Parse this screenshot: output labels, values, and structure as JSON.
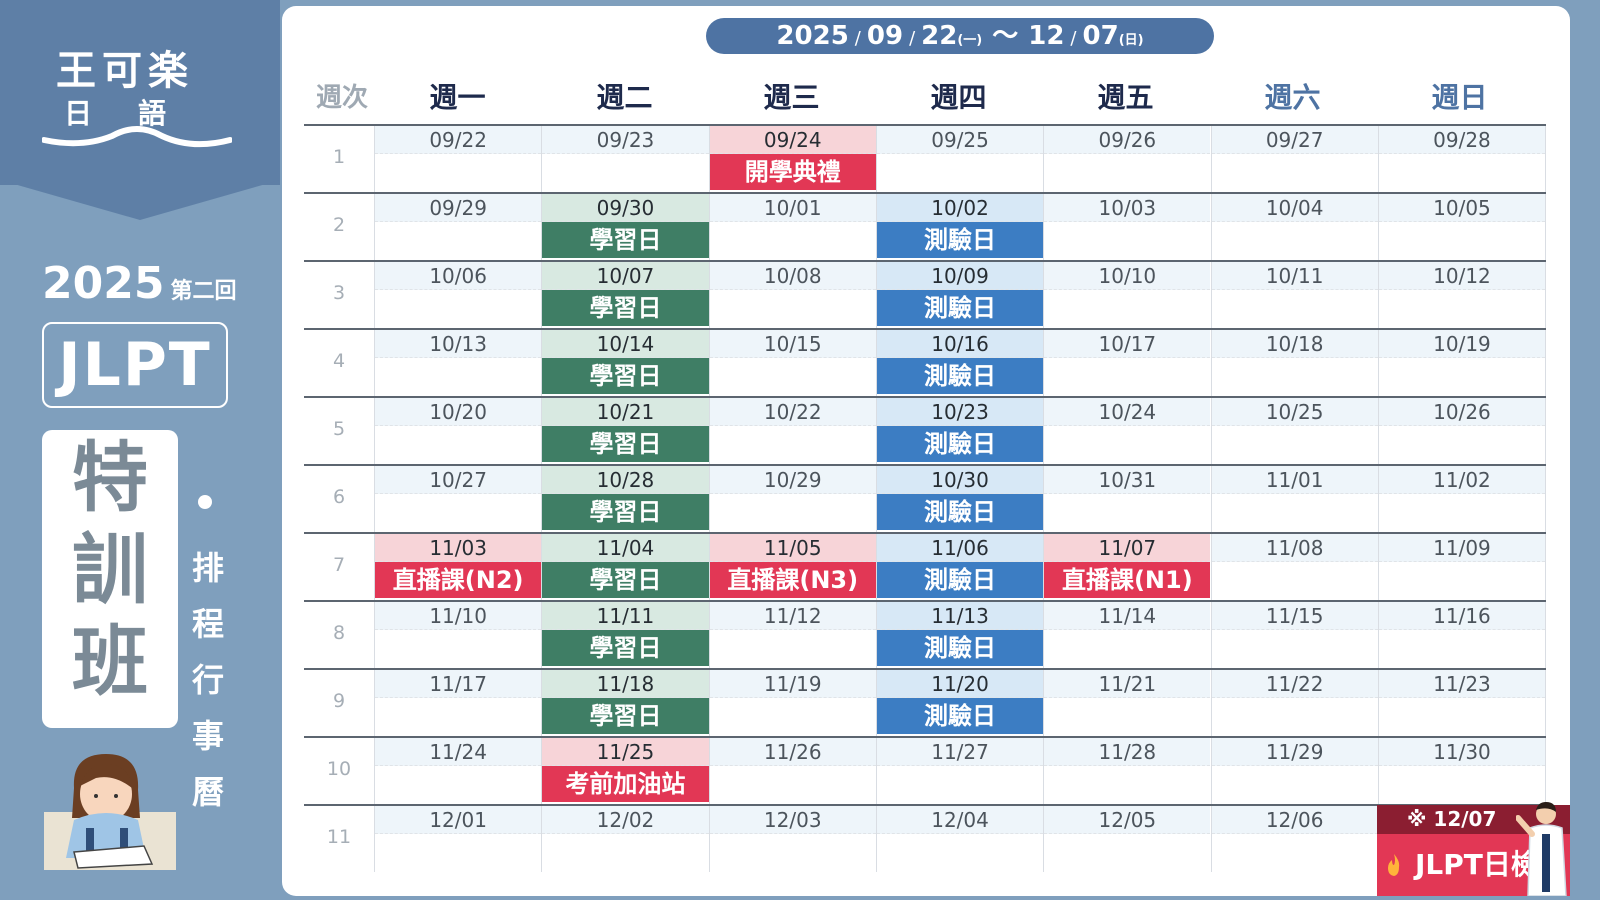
{
  "brand": {
    "line1": "王可楽",
    "line2": "日語"
  },
  "sidebar": {
    "year": "2025",
    "round": "第二回",
    "exam": "JLPT",
    "tokkun": [
      "特",
      "訓",
      "班"
    ],
    "subtitle": [
      "排",
      "程",
      "行",
      "事",
      "曆"
    ]
  },
  "range": {
    "year": "2025",
    "start_month": "09",
    "start_day": "22",
    "start_dow": "(一)",
    "tilde": "〜",
    "end_month": "12",
    "end_day": "07",
    "end_dow": "(日)"
  },
  "header": {
    "week_label": "週次",
    "days": [
      "週一",
      "週二",
      "週三",
      "週四",
      "週五",
      "週六",
      "週日"
    ]
  },
  "weeks": [
    {
      "no": "1",
      "dates": [
        "09/22",
        "09/23",
        "09/24",
        "09/25",
        "09/26",
        "09/27",
        "09/28"
      ]
    },
    {
      "no": "2",
      "dates": [
        "09/29",
        "09/30",
        "10/01",
        "10/02",
        "10/03",
        "10/04",
        "10/05"
      ]
    },
    {
      "no": "3",
      "dates": [
        "10/06",
        "10/07",
        "10/08",
        "10/09",
        "10/10",
        "10/11",
        "10/12"
      ]
    },
    {
      "no": "4",
      "dates": [
        "10/13",
        "10/14",
        "10/15",
        "10/16",
        "10/17",
        "10/18",
        "10/19"
      ]
    },
    {
      "no": "5",
      "dates": [
        "10/20",
        "10/21",
        "10/22",
        "10/23",
        "10/24",
        "10/25",
        "10/26"
      ]
    },
    {
      "no": "6",
      "dates": [
        "10/27",
        "10/28",
        "10/29",
        "10/30",
        "10/31",
        "11/01",
        "11/02"
      ]
    },
    {
      "no": "7",
      "dates": [
        "11/03",
        "11/04",
        "11/05",
        "11/06",
        "11/07",
        "11/08",
        "11/09"
      ]
    },
    {
      "no": "8",
      "dates": [
        "11/10",
        "11/11",
        "11/12",
        "11/13",
        "11/14",
        "11/15",
        "11/16"
      ]
    },
    {
      "no": "9",
      "dates": [
        "11/17",
        "11/18",
        "11/19",
        "11/20",
        "11/21",
        "11/22",
        "11/23"
      ]
    },
    {
      "no": "10",
      "dates": [
        "11/24",
        "11/25",
        "11/26",
        "11/27",
        "11/28",
        "11/29",
        "11/30"
      ]
    },
    {
      "no": "11",
      "dates": [
        "12/01",
        "12/02",
        "12/03",
        "12/04",
        "12/05",
        "12/06",
        ""
      ]
    }
  ],
  "events": [
    {
      "week": 0,
      "day": 2,
      "type": "red",
      "label": "開學典禮"
    },
    {
      "week": 1,
      "day": 1,
      "type": "study",
      "label": "學習日"
    },
    {
      "week": 1,
      "day": 3,
      "type": "test",
      "label": "測驗日"
    },
    {
      "week": 2,
      "day": 1,
      "type": "study",
      "label": "學習日"
    },
    {
      "week": 2,
      "day": 3,
      "type": "test",
      "label": "測驗日"
    },
    {
      "week": 3,
      "day": 1,
      "type": "study",
      "label": "學習日"
    },
    {
      "week": 3,
      "day": 3,
      "type": "test",
      "label": "測驗日"
    },
    {
      "week": 4,
      "day": 1,
      "type": "study",
      "label": "學習日"
    },
    {
      "week": 4,
      "day": 3,
      "type": "test",
      "label": "測驗日"
    },
    {
      "week": 5,
      "day": 1,
      "type": "study",
      "label": "學習日"
    },
    {
      "week": 5,
      "day": 3,
      "type": "test",
      "label": "測驗日"
    },
    {
      "week": 6,
      "day": 0,
      "type": "red",
      "label": "直播課(N2)"
    },
    {
      "week": 6,
      "day": 1,
      "type": "study",
      "label": "學習日"
    },
    {
      "week": 6,
      "day": 2,
      "type": "red",
      "label": "直播課(N3)"
    },
    {
      "week": 6,
      "day": 3,
      "type": "test",
      "label": "測驗日"
    },
    {
      "week": 6,
      "day": 4,
      "type": "red",
      "label": "直播課(N1)"
    },
    {
      "week": 7,
      "day": 1,
      "type": "study",
      "label": "學習日"
    },
    {
      "week": 7,
      "day": 3,
      "type": "test",
      "label": "測驗日"
    },
    {
      "week": 8,
      "day": 1,
      "type": "study",
      "label": "學習日"
    },
    {
      "week": 8,
      "day": 3,
      "type": "test",
      "label": "測驗日"
    },
    {
      "week": 9,
      "day": 1,
      "type": "red",
      "label": "考前加油站"
    }
  ],
  "exam_day": {
    "note": "※ 12/07",
    "label": "JLPT日檢"
  },
  "colors": {
    "study": "#3f7e65",
    "test": "#3c7dc3",
    "red": "#e23755",
    "pill": "#4e73a3",
    "background": "#7f9fbd"
  }
}
